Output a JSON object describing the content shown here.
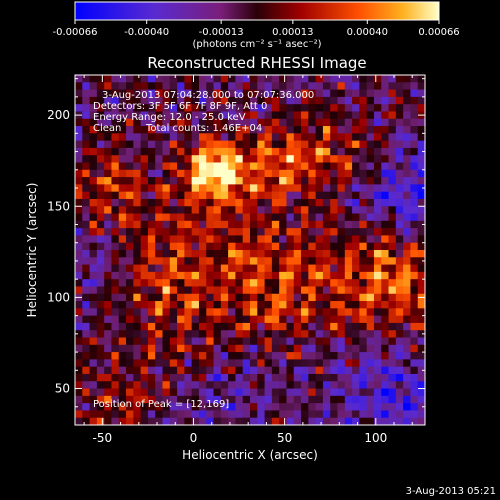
{
  "chart_data": {
    "type": "heatmap",
    "title": "Reconstructed RHESSI Image",
    "xlabel": "Heliocentric X (arcsec)",
    "ylabel": "Heliocentric Y (arcsec)",
    "xlim": [
      -65,
      127
    ],
    "ylim": [
      30,
      222
    ],
    "xticks": [
      -50,
      0,
      50,
      100
    ],
    "yticks": [
      50,
      100,
      150,
      200
    ],
    "colorbar": {
      "range": [
        -0.00066,
        0.00066
      ],
      "ticks": [
        "-0.00066",
        "-0.00040",
        "-0.00013",
        "0.00013",
        "0.00040",
        "0.00066"
      ],
      "tick_values": [
        -0.00066,
        -0.0004,
        -0.00013,
        0.00013,
        0.0004,
        0.00066
      ],
      "label": "(photons cm⁻² s⁻¹ asec⁻²)"
    },
    "peak": {
      "x": 12,
      "y": 169
    },
    "grid": false
  },
  "annotations": {
    "time_range": "3-Aug-2013 07:04:28.000 to 07:07:36.000",
    "detectors": "Detectors: 3F 5F 6F 7F 8F 9F, Att 0",
    "energy": "Energy Range: 12.0 - 25.0 keV",
    "method": "Clean",
    "counts": "Total counts: 1.46E+04",
    "peak_text": "Position of Peak = [12,169]"
  },
  "footer": {
    "timestamp": "3-Aug-2013 05:21"
  }
}
